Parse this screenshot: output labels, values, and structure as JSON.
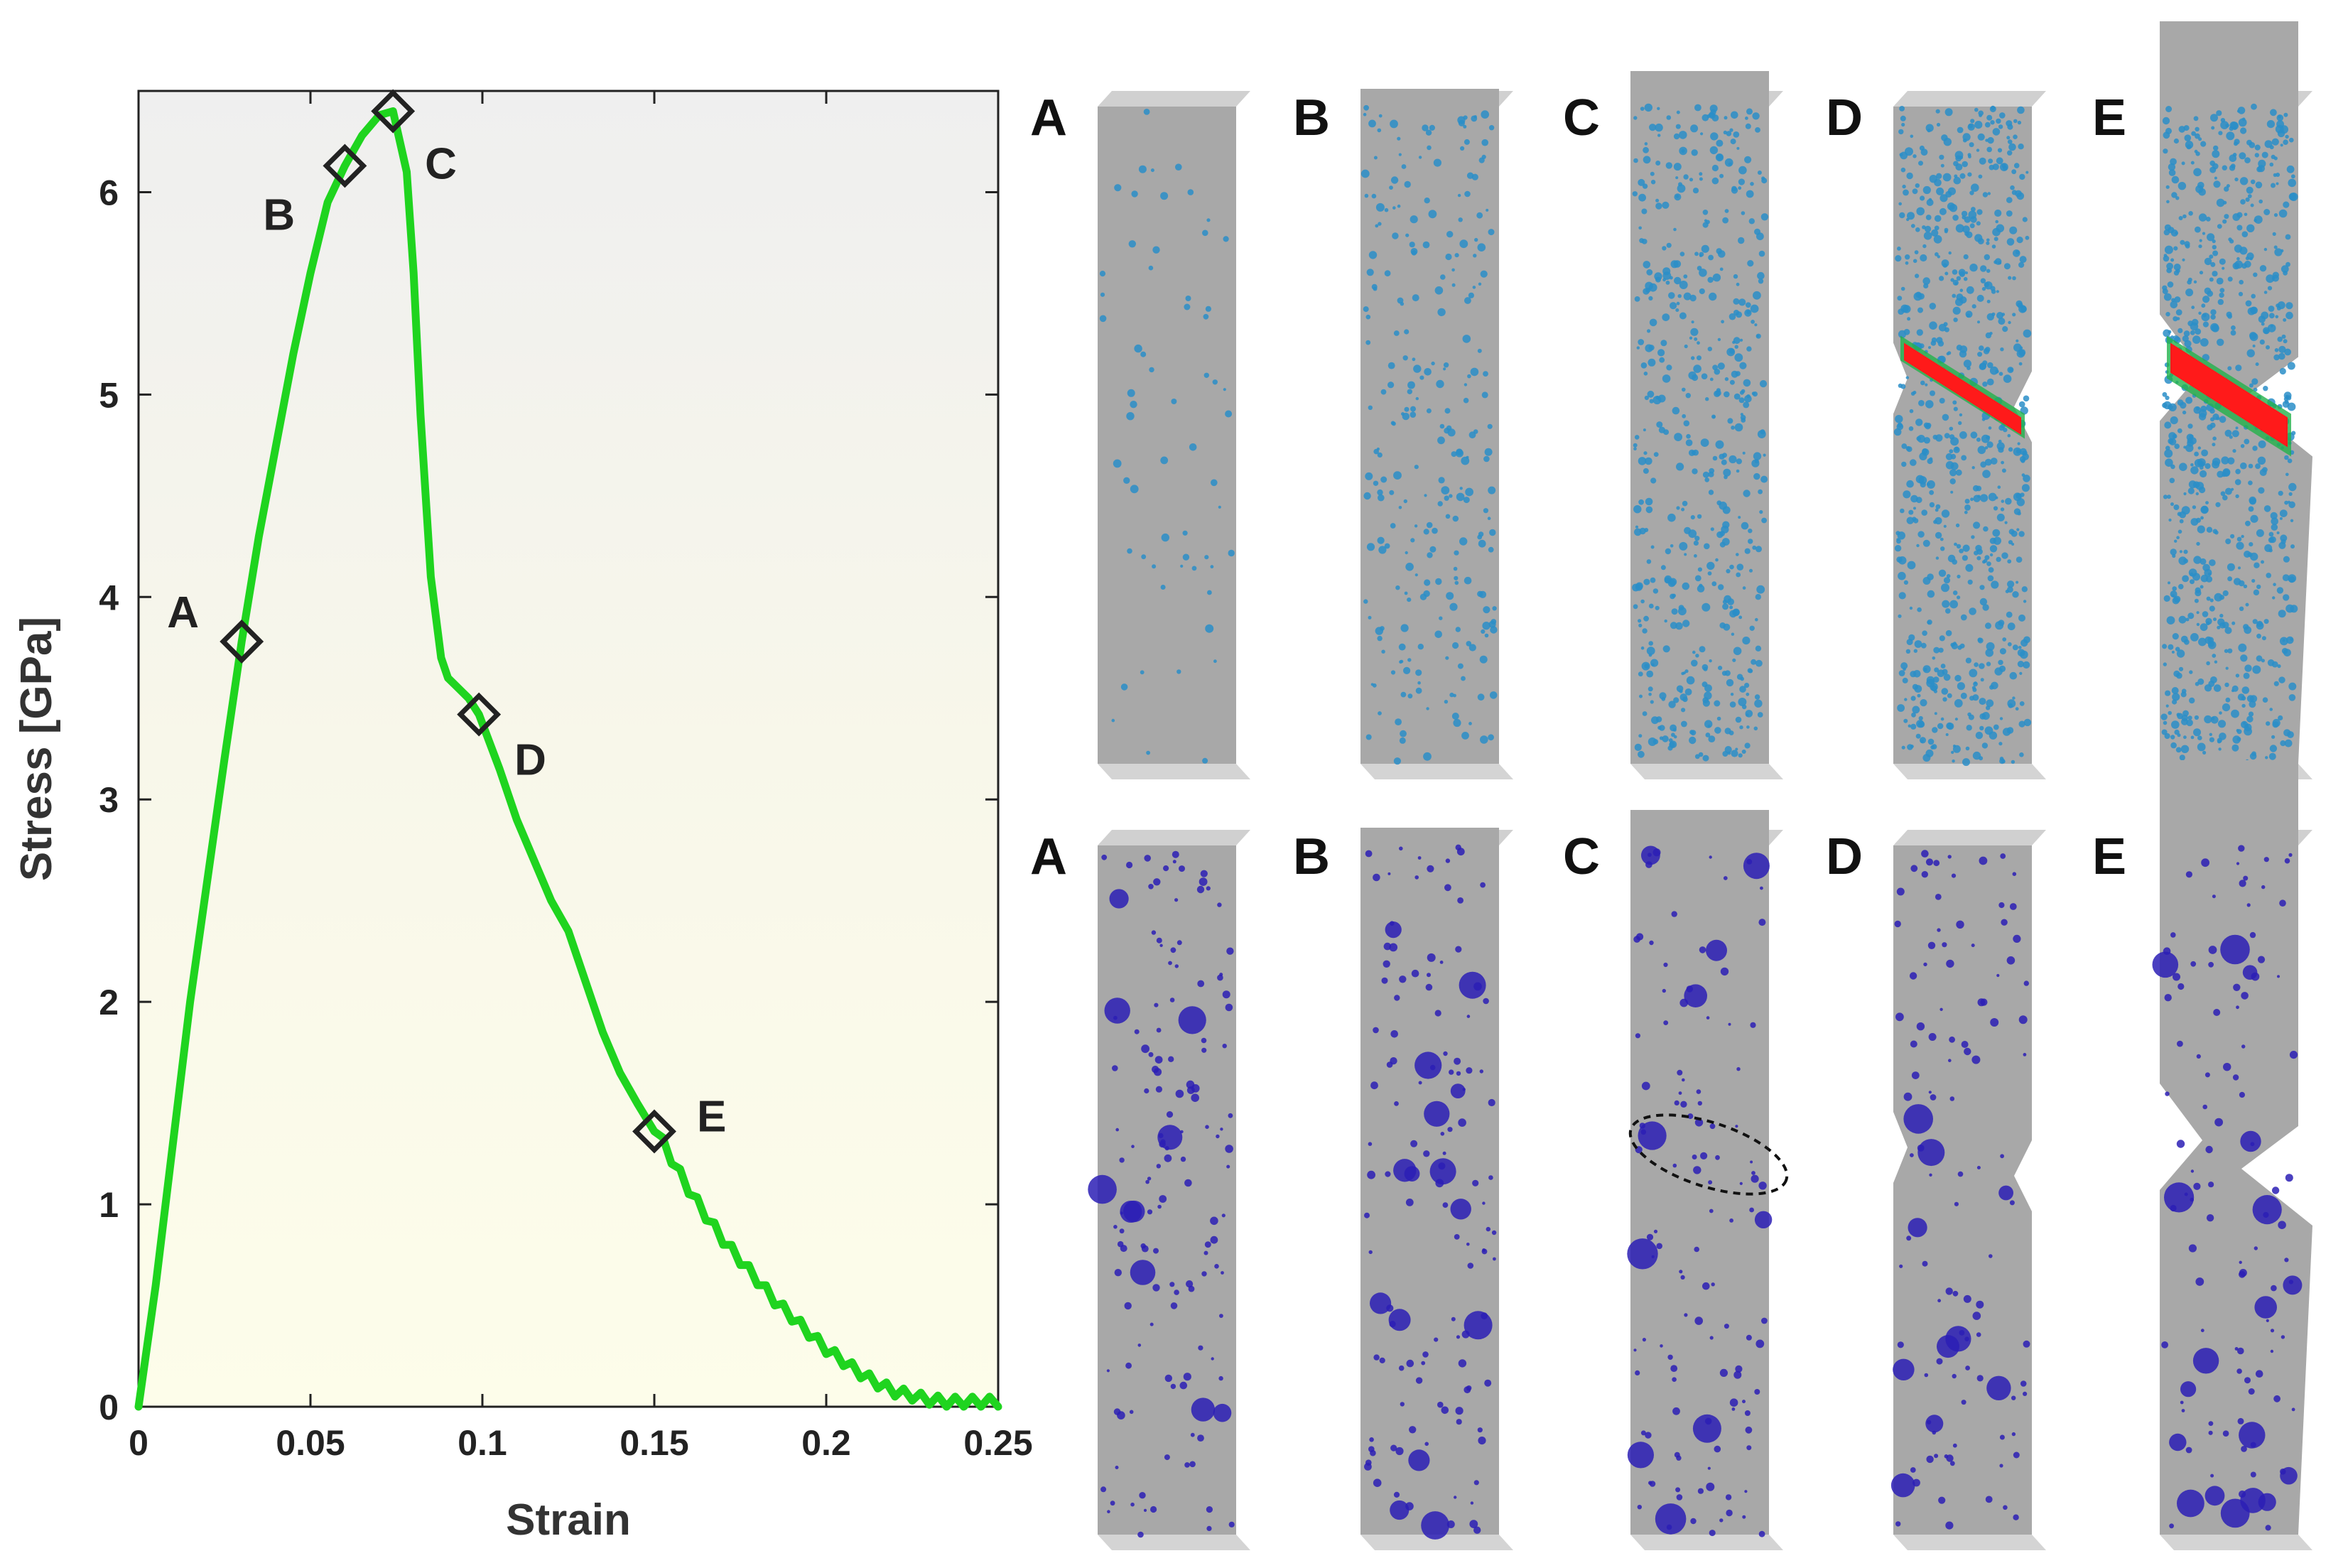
{
  "chart_data": {
    "type": "line",
    "xlabel": "Strain",
    "ylabel": "Stress [GPa]",
    "xlim": [
      0,
      0.25
    ],
    "ylim": [
      0,
      6.5
    ],
    "xticks": [
      0,
      0.05,
      0.1,
      0.15,
      0.2,
      0.25
    ],
    "xtick_labels": [
      "0",
      "0.05",
      "0.1",
      "0.15",
      "0.2",
      "0.25"
    ],
    "yticks": [
      0,
      1,
      2,
      3,
      4,
      5,
      6
    ],
    "ytick_labels": [
      "0",
      "1",
      "2",
      "3",
      "4",
      "5",
      "6"
    ],
    "series": [
      {
        "name": "stress-strain",
        "color": "#1fd41f",
        "x": [
          0,
          0.005,
          0.01,
          0.015,
          0.02,
          0.025,
          0.03,
          0.035,
          0.04,
          0.045,
          0.05,
          0.055,
          0.06,
          0.065,
          0.07,
          0.074,
          0.078,
          0.08,
          0.082,
          0.085,
          0.088,
          0.09,
          0.093,
          0.096,
          0.099,
          0.105,
          0.11,
          0.115,
          0.12,
          0.125,
          0.13,
          0.135,
          0.14,
          0.145,
          0.15,
          0.155,
          0.16,
          0.165,
          0.17,
          0.175,
          0.18,
          0.185,
          0.19,
          0.195,
          0.2,
          0.205,
          0.21,
          0.215,
          0.22,
          0.225,
          0.23,
          0.235,
          0.24,
          0.245,
          0.25
        ],
        "y": [
          0,
          0.6,
          1.3,
          2.0,
          2.6,
          3.2,
          3.78,
          4.3,
          4.75,
          5.2,
          5.6,
          5.95,
          6.13,
          6.28,
          6.38,
          6.4,
          6.1,
          5.6,
          4.9,
          4.1,
          3.7,
          3.6,
          3.55,
          3.5,
          3.42,
          3.15,
          2.9,
          2.7,
          2.5,
          2.35,
          2.1,
          1.85,
          1.65,
          1.5,
          1.36,
          1.2,
          1.05,
          0.92,
          0.8,
          0.7,
          0.6,
          0.5,
          0.42,
          0.34,
          0.26,
          0.2,
          0.14,
          0.09,
          0.05,
          0.03,
          0.01,
          0.0,
          0.0,
          0.0,
          0.0
        ]
      }
    ],
    "annotations": [
      {
        "label": "A",
        "x": 0.03,
        "y": 3.78
      },
      {
        "label": "B",
        "x": 0.06,
        "y": 6.13
      },
      {
        "label": "C",
        "x": 0.074,
        "y": 6.4
      },
      {
        "label": "D",
        "x": 0.099,
        "y": 3.42
      },
      {
        "label": "E",
        "x": 0.15,
        "y": 1.36
      }
    ]
  },
  "panels": {
    "top_row_labels": [
      "A",
      "B",
      "C",
      "D",
      "E"
    ],
    "bottom_row_labels": [
      "A",
      "B",
      "C",
      "D",
      "E"
    ]
  },
  "colors": {
    "plot_bg_top": "#f0f0f0",
    "plot_bg_bottom": "#fcfde8",
    "sample_gray": "#a8a8a8",
    "top_defects": "#2a8ec8",
    "shear_band": "#ff1a1a",
    "bottom_defects": "#2c1fb5"
  }
}
